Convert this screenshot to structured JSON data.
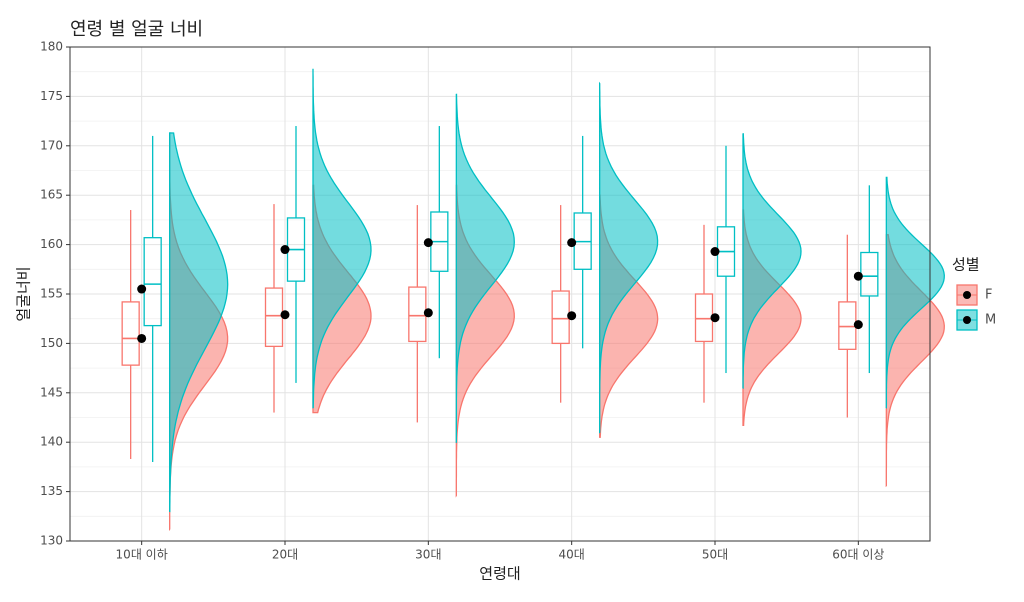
{
  "chart_data": {
    "type": "raincloud",
    "title": "연령 별 얼굴 너비",
    "x_label": "연령대",
    "y_label": "얼굴너비",
    "legend_title": "성별",
    "categories": [
      "10대 이하",
      "20대",
      "30대",
      "40대",
      "50대",
      "60대 이상"
    ],
    "ylim": [
      130,
      180
    ],
    "yticks": [
      130,
      135,
      140,
      145,
      150,
      155,
      160,
      165,
      170,
      175,
      180
    ],
    "grid": true,
    "legend_position": "right",
    "series": [
      {
        "name": "F",
        "color": "#f8766d",
        "whisker_low": [
          138.3,
          143,
          142,
          144,
          144,
          142.5
        ],
        "q1": [
          147.8,
          149.7,
          150.2,
          150,
          150.2,
          149.4
        ],
        "median": [
          150.5,
          152.8,
          152.8,
          152.5,
          152.5,
          151.7
        ],
        "q3": [
          154.2,
          155.6,
          155.7,
          155.3,
          155,
          154.2
        ],
        "whisker_high": [
          163.5,
          164.1,
          164,
          164,
          162,
          161
        ],
        "mean": [
          150.5,
          152.9,
          153.1,
          152.8,
          152.6,
          151.9
        ],
        "min": [
          131.2,
          143,
          134.6,
          140.5,
          141.7,
          135.6
        ],
        "max": [
          171.2,
          166,
          166,
          165,
          163.5,
          161
        ]
      },
      {
        "name": "M",
        "color": "#00bfc4",
        "whisker_low": [
          138,
          146,
          148.5,
          149.5,
          147,
          147
        ],
        "q1": [
          151.8,
          156.3,
          157.3,
          157.5,
          156.8,
          154.8
        ],
        "median": [
          156,
          159.5,
          160.3,
          160.3,
          159.3,
          156.8
        ],
        "q3": [
          160.7,
          162.7,
          163.3,
          163.2,
          161.8,
          159.2
        ],
        "whisker_high": [
          171,
          172,
          172,
          171,
          170,
          166
        ],
        "mean": [
          155.5,
          159.5,
          160.2,
          160.2,
          159.3,
          156.8
        ],
        "min": [
          133,
          143.5,
          140,
          141,
          145.5,
          143.5
        ],
        "max": [
          171.3,
          177.8,
          175.2,
          176.3,
          171.2,
          166.8
        ]
      }
    ]
  }
}
